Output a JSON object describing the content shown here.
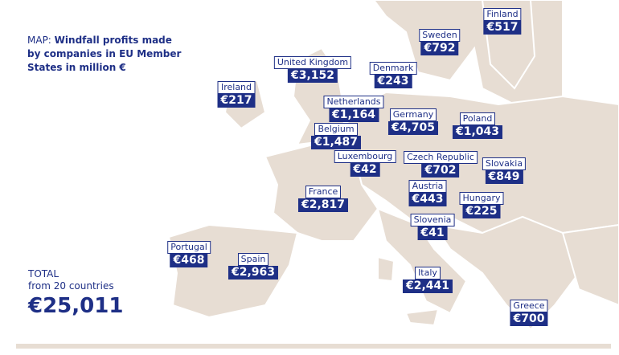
{
  "header": {
    "prefix": "MAP:",
    "title": "Windfall profits made by companies in EU Member States in million €"
  },
  "countries": [
    {
      "name": "Finland",
      "amount": "€517"
    },
    {
      "name": "Sweden",
      "amount": "€792"
    },
    {
      "name": "United Kingdom",
      "amount": "€3,152"
    },
    {
      "name": "Denmark",
      "amount": "€243"
    },
    {
      "name": "Ireland",
      "amount": "€217"
    },
    {
      "name": "Netherlands",
      "amount": "€1,164"
    },
    {
      "name": "Germany",
      "amount": "€4,705"
    },
    {
      "name": "Poland",
      "amount": "€1,043"
    },
    {
      "name": "Belgium",
      "amount": "€1,487"
    },
    {
      "name": "Luxembourg",
      "amount": "€42"
    },
    {
      "name": "Czech Republic",
      "amount": "€702"
    },
    {
      "name": "Slovakia",
      "amount": "€849"
    },
    {
      "name": "Austria",
      "amount": "€443"
    },
    {
      "name": "France",
      "amount": "€2,817"
    },
    {
      "name": "Hungary",
      "amount": "€225"
    },
    {
      "name": "Slovenia",
      "amount": "€41"
    },
    {
      "name": "Portugal",
      "amount": "€468"
    },
    {
      "name": "Spain",
      "amount": "€2,963"
    },
    {
      "name": "Italy",
      "amount": "€2,441"
    },
    {
      "name": "Greece",
      "amount": "€700"
    }
  ],
  "total": {
    "label": "TOTAL",
    "sub": "from 20 countries",
    "amount": "€25,011"
  }
}
